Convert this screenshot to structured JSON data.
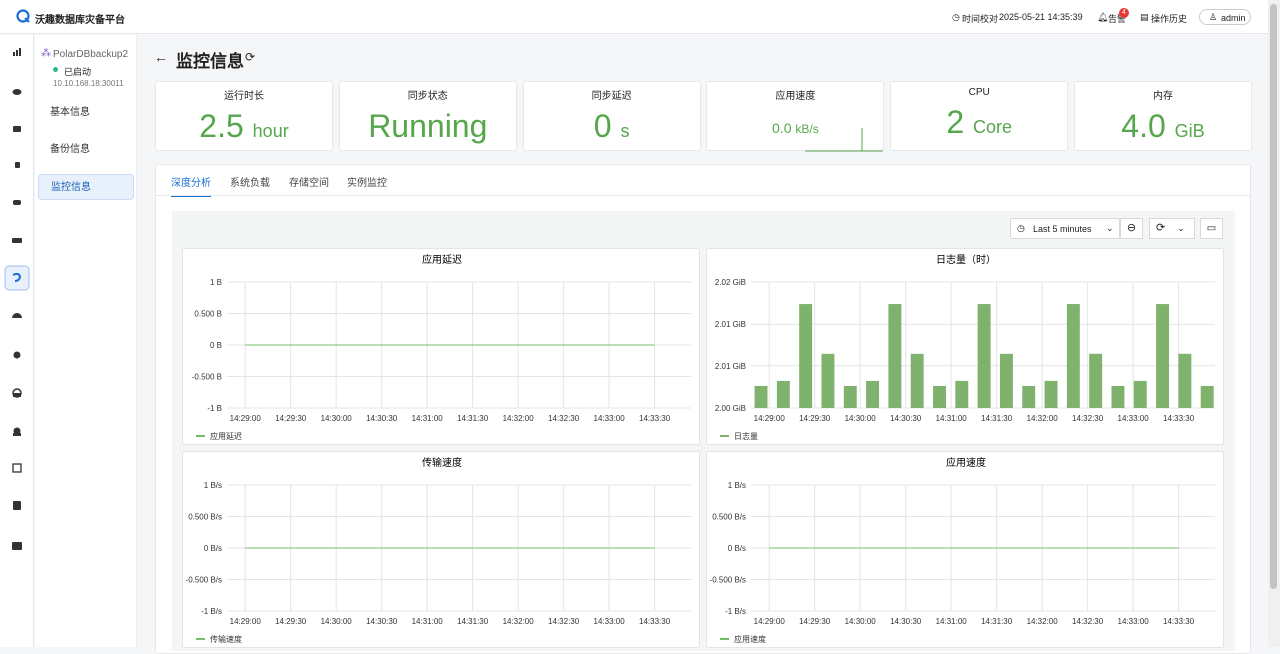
{
  "header": {
    "brand": "沃趣数据库灾备平台",
    "time_label": "时间校对",
    "time": "2025-05-21 14:35:39",
    "alerts": "告警",
    "alert_count": 4,
    "history": "操作历史",
    "user": "admin"
  },
  "instance": {
    "name": "PolarDBbackup2",
    "status": "已启动",
    "address": "10.10.168.18:30011"
  },
  "menu": [
    "基本信息",
    "备份信息",
    "监控信息"
  ],
  "page_title": "监控信息",
  "stats": [
    {
      "label": "运行时长",
      "value": "2.5",
      "unit": "hour"
    },
    {
      "label": "同步状态",
      "value": "Running"
    },
    {
      "label": "同步延迟",
      "value": "0",
      "unit": "s"
    },
    {
      "label": "应用速度",
      "value": "0.0",
      "unit": "kB/s"
    },
    {
      "label": "CPU",
      "value": "2",
      "unit": "Core"
    },
    {
      "label": "内存",
      "value": "4.0",
      "unit": "GiB"
    }
  ],
  "tabs": [
    "深度分析",
    "系统负载",
    "存储空间",
    "实例监控"
  ],
  "time_range": "Last 5 minutes",
  "chart_data": [
    {
      "type": "line",
      "title": "应用延迟",
      "xticks": [
        "14:29:00",
        "14:29:30",
        "14:30:00",
        "14:30:30",
        "14:31:00",
        "14:31:30",
        "14:32:00",
        "14:32:30",
        "14:33:00",
        "14:33:30"
      ],
      "series": [
        {
          "name": "应用延迟",
          "color": "#73bf69",
          "values": [
            0,
            0,
            0,
            0,
            0,
            0,
            0,
            0,
            0,
            0
          ]
        }
      ],
      "ylim": [
        -1,
        1
      ],
      "yticks": [
        {
          "value": 1,
          "label": "1 B"
        },
        {
          "value": 0.5,
          "label": "0.500 B"
        },
        {
          "value": 0,
          "label": "0 B"
        },
        {
          "value": -0.5,
          "label": "-0.500 B"
        },
        {
          "value": -1,
          "label": "-1 B"
        }
      ],
      "grid": true
    },
    {
      "type": "bar",
      "title": "日志量（时）",
      "xticks": [
        "14:29:00",
        "14:29:30",
        "14:30:00",
        "14:30:30",
        "14:31:00",
        "14:31:30",
        "14:32:00",
        "14:32:30",
        "14:33:00",
        "14:33:30"
      ],
      "series": [
        {
          "name": "日志量",
          "color": "#7eb26d",
          "values": [
            2.0035,
            2.0043,
            2.0165,
            2.0086,
            2.0035,
            2.0043,
            2.0165,
            2.0086,
            2.0035,
            2.0043,
            2.0165,
            2.0086,
            2.0035,
            2.0043,
            2.0165,
            2.0086,
            2.0035,
            2.0043,
            2.0165,
            2.0086,
            2.0035
          ]
        }
      ],
      "ylim": [
        2,
        2.02
      ],
      "yticks": [
        {
          "value": 2.02,
          "label": "2.02 GiB"
        },
        {
          "value": 2.0133,
          "label": "2.01 GiB"
        },
        {
          "value": 2.0067,
          "label": "2.01 GiB"
        },
        {
          "value": 2,
          "label": "2.00 GiB"
        }
      ],
      "grid": true
    },
    {
      "type": "line",
      "title": "传输速度",
      "xticks": [
        "14:29:00",
        "14:29:30",
        "14:30:00",
        "14:30:30",
        "14:31:00",
        "14:31:30",
        "14:32:00",
        "14:32:30",
        "14:33:00",
        "14:33:30"
      ],
      "series": [
        {
          "name": "传输速度",
          "color": "#73bf69",
          "values": [
            0,
            0,
            0,
            0,
            0,
            0,
            0,
            0,
            0,
            0
          ]
        }
      ],
      "ylim": [
        -1,
        1
      ],
      "yticks": [
        {
          "value": 1,
          "label": "1 B/s"
        },
        {
          "value": 0.5,
          "label": "0.500 B/s"
        },
        {
          "value": 0,
          "label": "0 B/s"
        },
        {
          "value": -0.5,
          "label": "-0.500 B/s"
        },
        {
          "value": -1,
          "label": "-1 B/s"
        }
      ],
      "grid": true
    },
    {
      "type": "line",
      "title": "应用速度",
      "xticks": [
        "14:29:00",
        "14:29:30",
        "14:30:00",
        "14:30:30",
        "14:31:00",
        "14:31:30",
        "14:32:00",
        "14:32:30",
        "14:33:00",
        "14:33:30"
      ],
      "series": [
        {
          "name": "应用速度",
          "color": "#73bf69",
          "values": [
            0,
            0,
            0,
            0,
            0,
            0,
            0,
            0,
            0,
            0
          ]
        }
      ],
      "ylim": [
        -1,
        1
      ],
      "yticks": [
        {
          "value": 1,
          "label": "1 B/s"
        },
        {
          "value": 0.5,
          "label": "0.500 B/s"
        },
        {
          "value": 0,
          "label": "0 B/s"
        },
        {
          "value": -0.5,
          "label": "-0.500 B/s"
        },
        {
          "value": -1,
          "label": "-1 B/s"
        }
      ],
      "grid": true
    }
  ]
}
